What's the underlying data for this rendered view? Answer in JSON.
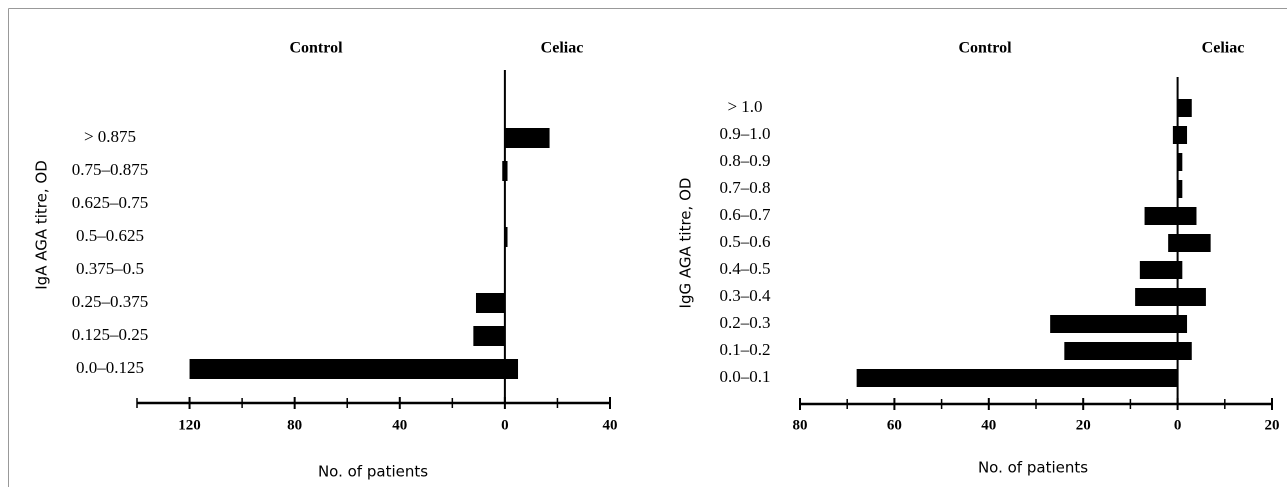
{
  "chart_data": [
    {
      "type": "bar",
      "orientation": "horizontal",
      "y_label": "IgA AGA titre, OD",
      "x_label": "No. of patients",
      "categories": [
        "0.0–0.125",
        "0.125–0.25",
        "0.25–0.375",
        "0.375–0.5",
        "0.5–0.625",
        "0.625–0.75",
        "0.75–0.875",
        "> 0.875"
      ],
      "series": [
        {
          "name": "Control",
          "color": "#000000",
          "values": [
            -120,
            -12,
            -11,
            0,
            0,
            0,
            -1,
            0
          ]
        },
        {
          "name": "Celiac",
          "color": "#000000",
          "values": [
            5,
            0,
            0,
            0,
            1,
            0,
            1,
            17
          ]
        }
      ],
      "xlim": [
        -140,
        40
      ],
      "xticks": [
        {
          "value": -120,
          "label": "120"
        },
        {
          "value": -80,
          "label": "80"
        },
        {
          "value": -40,
          "label": "40"
        },
        0,
        40
      ],
      "minor_xticks": [
        -140,
        -100,
        -60,
        -20,
        20
      ]
    },
    {
      "type": "bar",
      "orientation": "horizontal",
      "y_label": "IgG AGA titre, OD",
      "x_label": "No. of patients",
      "categories": [
        "0.0–0.1",
        "0.1–0.2",
        "0.2–0.3",
        "0.3–0.4",
        "0.4–0.5",
        "0.5–0.6",
        "0.6–0.7",
        "0.7–0.8",
        "0.8–0.9",
        "0.9–1.0",
        "> 1.0"
      ],
      "series": [
        {
          "name": "Control",
          "color": "#000000",
          "values": [
            -68,
            -24,
            -27,
            -9,
            -8,
            -2,
            -7,
            0,
            0,
            -1,
            0
          ]
        },
        {
          "name": "Celiac",
          "color": "#000000",
          "values": [
            0,
            3,
            2,
            6,
            1,
            7,
            4,
            1,
            1,
            2,
            3
          ]
        }
      ],
      "xlim": [
        -80,
        20
      ],
      "xticks": [
        {
          "value": -80,
          "label": "80"
        },
        {
          "value": -60,
          "label": "60"
        },
        {
          "value": -40,
          "label": "40"
        },
        {
          "value": -20,
          "label": "20"
        },
        0,
        20
      ],
      "minor_xticks": [
        -70,
        -50,
        -30,
        -10,
        10
      ]
    }
  ]
}
